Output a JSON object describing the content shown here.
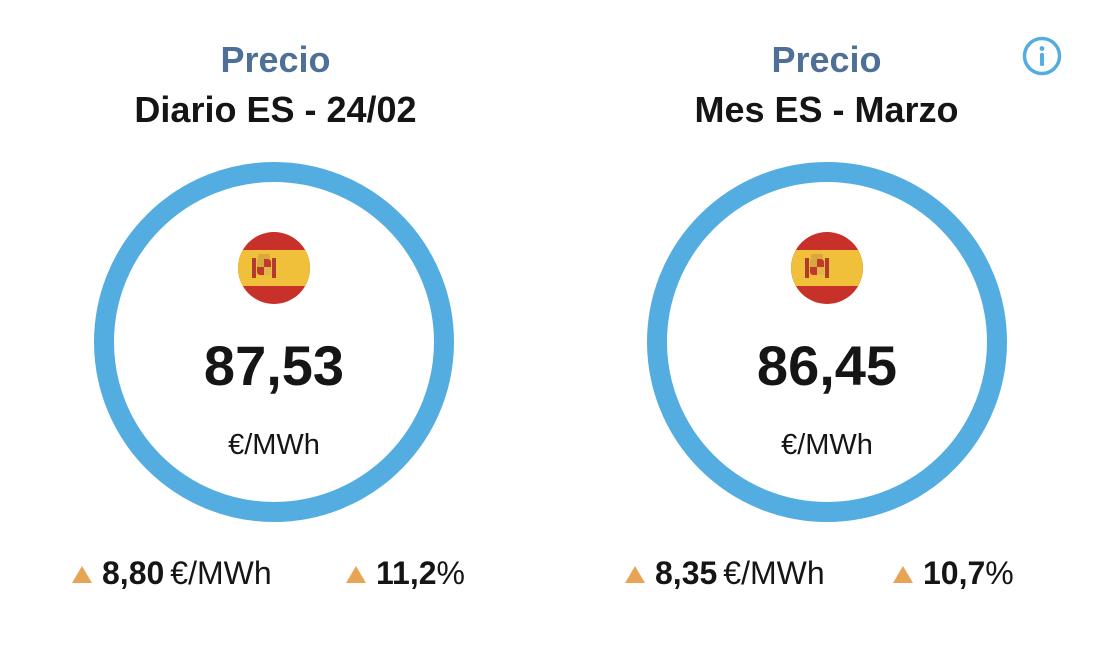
{
  "cards": [
    {
      "title": "Precio",
      "subtitle": "Diario ES - 24/02",
      "flag_icon": "spain-flag-icon",
      "value": "87,53",
      "unit": "€/MWh",
      "change_abs": {
        "value": "8,80",
        "unit": "€/MWh",
        "direction": "up"
      },
      "change_pct": {
        "value": "11,2",
        "unit": "%",
        "direction": "up"
      }
    },
    {
      "title": "Precio",
      "subtitle": "Mes ES - Marzo",
      "flag_icon": "spain-flag-icon",
      "value": "86,45",
      "unit": "€/MWh",
      "change_abs": {
        "value": "8,35",
        "unit": "€/MWh",
        "direction": "up"
      },
      "change_pct": {
        "value": "10,7",
        "unit": "%",
        "direction": "up"
      }
    }
  ],
  "info_icon": "info-icon",
  "colors": {
    "title": "#4f7096",
    "text": "#151515",
    "ring": "#54ade0",
    "up_arrow": "#e8a455",
    "info": "#54ade0"
  }
}
